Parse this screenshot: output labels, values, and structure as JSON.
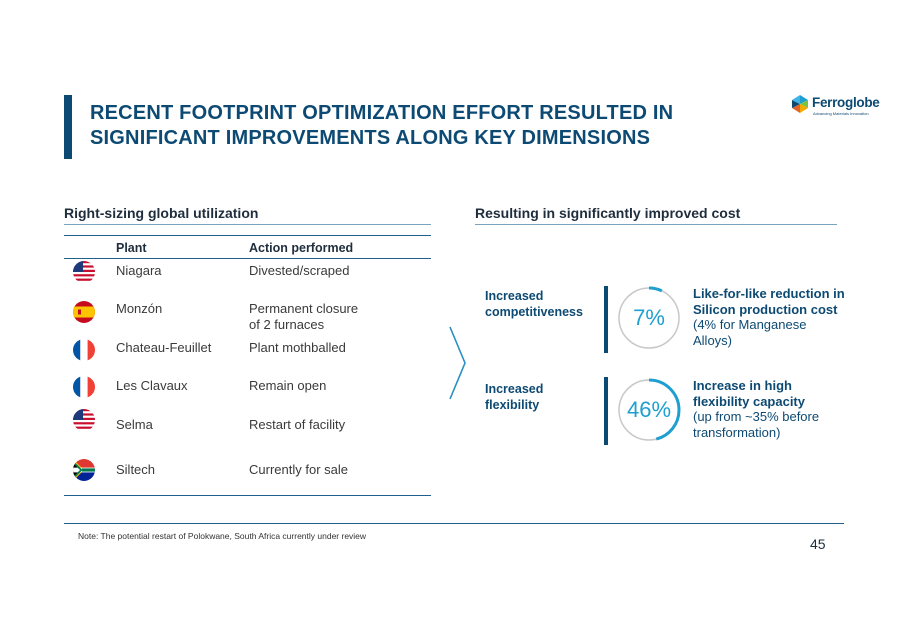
{
  "title": {
    "line1": "RECENT FOOTPRINT OPTIMIZATION EFFORT RESULTED IN",
    "line2": "SIGNIFICANT IMPROVEMENTS ALONG KEY DIMENSIONS"
  },
  "logo": {
    "name": "Ferroglobe",
    "tagline": "Advancing Materials Innovation"
  },
  "left": {
    "heading": "Right-sizing global utilization",
    "columns": {
      "plant": "Plant",
      "action": "Action performed"
    },
    "rows": [
      {
        "flag": "usa-flag-icon",
        "plant": "Niagara",
        "action_line1": "Divested/scraped",
        "action_line2": ""
      },
      {
        "flag": "spain-flag-icon",
        "plant": "Monzón",
        "action_line1": "Permanent closure",
        "action_line2": "of 2 furnaces"
      },
      {
        "flag": "france-flag-icon",
        "plant": "Chateau-Feuillet",
        "action_line1": "Plant mothballed",
        "action_line2": ""
      },
      {
        "flag": "france-flag-icon",
        "plant": "Les Clavaux",
        "action_line1": "Remain open",
        "action_line2": ""
      },
      {
        "flag": "usa-flag-icon",
        "plant": "Selma",
        "action_line1": "Restart of facility",
        "action_line2": ""
      },
      {
        "flag": "south-africa-flag-icon",
        "plant": "Siltech",
        "action_line1": "Currently for sale",
        "action_line2": ""
      }
    ]
  },
  "right": {
    "heading": "Resulting in significantly improved cost",
    "metrics": [
      {
        "label_line1": "Increased",
        "label_line2": "competitiveness",
        "value": "7%",
        "ring_fraction": 0.07,
        "desc_bold1": "Like-for-like reduction in",
        "desc_bold2": "Silicon production cost",
        "desc_line3": "(4% for Manganese",
        "desc_line4": "Alloys)"
      },
      {
        "label_line1": "Increased",
        "label_line2": "flexibility",
        "value": "46%",
        "ring_fraction": 0.46,
        "desc_bold1": "Increase in high",
        "desc_bold2": "flexibility capacity",
        "desc_line3": "(up from ~35% before",
        "desc_line4": "transformation)"
      }
    ]
  },
  "colors": {
    "navy": "#0d4a73",
    "accent": "#1e9fd0",
    "ring_track": "#c8c8c8"
  },
  "note": "Note:  The potential restart of Polokwane, South Africa currently under review",
  "page_number": "45"
}
